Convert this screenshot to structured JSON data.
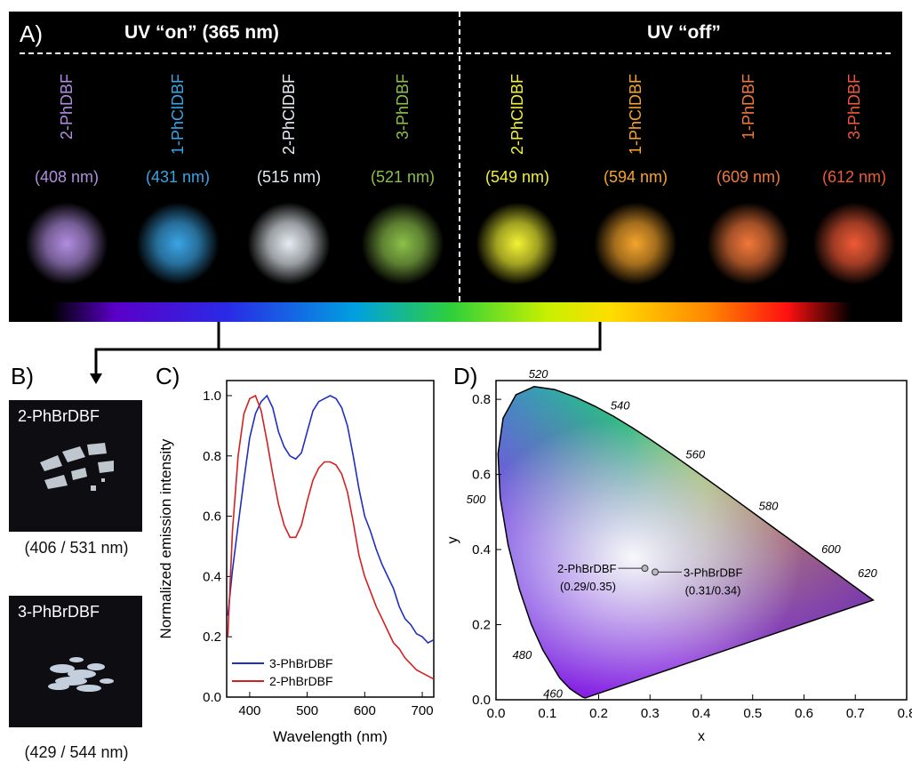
{
  "panel_a": {
    "label": "A)",
    "uv_on": "UV “on” (365 nm)",
    "uv_off": "UV “off”",
    "compounds": [
      {
        "name": "2-PhDBF",
        "wavelength": "(408 nm)",
        "color": "#b18de0"
      },
      {
        "name": "1-PhClDBF",
        "wavelength": "(431 nm)",
        "color": "#3aa5e6"
      },
      {
        "name": "2-PhClDBF",
        "wavelength": "(515 nm)",
        "color": "#e6ecf2"
      },
      {
        "name": "3-PhDBF",
        "wavelength": "(521 nm)",
        "color": "#8cc04a"
      },
      {
        "name": "2-PhClDBF",
        "wavelength": "(549 nm)",
        "color": "#f2f234"
      },
      {
        "name": "1-PhClDBF",
        "wavelength": "(594 nm)",
        "color": "#f5a52c"
      },
      {
        "name": "1-PhDBF",
        "wavelength": "(609 nm)",
        "color": "#f2783a"
      },
      {
        "name": "3-PhDBF",
        "wavelength": "(612 nm)",
        "color": "#ef5a36"
      }
    ]
  },
  "panel_b": {
    "label": "B)",
    "items": [
      {
        "name": "2-PhBrDBF",
        "caption": "(406 / 531 nm)"
      },
      {
        "name": "3-PhBrDBF",
        "caption": "(429 / 544 nm)"
      }
    ]
  },
  "chart_data": [
    {
      "type": "line",
      "panel_label": "C)",
      "xlabel": "Wavelength (nm)",
      "ylabel": "Normalized emission intensity",
      "xlim": [
        360,
        720
      ],
      "ylim": [
        0.0,
        1.05
      ],
      "xticks": [
        400,
        500,
        600,
        700
      ],
      "yticks": [
        "0.0",
        "0.2",
        "0.4",
        "0.6",
        "0.8",
        "1.0"
      ],
      "legend_position": "bottom-left",
      "series": [
        {
          "name": "3-PhBrDBF",
          "color": "#1f2fbf",
          "x": [
            362,
            370,
            380,
            390,
            400,
            410,
            420,
            430,
            440,
            450,
            460,
            470,
            480,
            490,
            500,
            510,
            520,
            530,
            540,
            550,
            560,
            570,
            580,
            590,
            600,
            610,
            620,
            630,
            640,
            650,
            660,
            670,
            680,
            690,
            700,
            710,
            720
          ],
          "y": [
            0.27,
            0.42,
            0.57,
            0.72,
            0.86,
            0.94,
            0.98,
            1.0,
            0.96,
            0.88,
            0.83,
            0.8,
            0.79,
            0.81,
            0.88,
            0.95,
            0.98,
            0.99,
            1.0,
            0.99,
            0.96,
            0.9,
            0.8,
            0.69,
            0.6,
            0.55,
            0.49,
            0.44,
            0.4,
            0.36,
            0.3,
            0.26,
            0.24,
            0.21,
            0.2,
            0.18,
            0.19
          ]
        },
        {
          "name": "2-PhBrDBF",
          "color": "#d32121",
          "x": [
            362,
            370,
            380,
            390,
            400,
            410,
            420,
            430,
            440,
            450,
            460,
            470,
            480,
            490,
            500,
            510,
            520,
            530,
            540,
            550,
            560,
            570,
            580,
            590,
            600,
            610,
            620,
            630,
            640,
            650,
            660,
            670,
            680,
            690,
            700,
            710,
            720
          ],
          "y": [
            0.2,
            0.55,
            0.8,
            0.94,
            0.99,
            1.0,
            0.95,
            0.85,
            0.74,
            0.64,
            0.57,
            0.53,
            0.53,
            0.57,
            0.65,
            0.72,
            0.76,
            0.78,
            0.78,
            0.77,
            0.74,
            0.68,
            0.58,
            0.47,
            0.4,
            0.35,
            0.3,
            0.26,
            0.22,
            0.18,
            0.16,
            0.13,
            0.11,
            0.09,
            0.08,
            0.07,
            0.06
          ]
        }
      ]
    },
    {
      "type": "scatter",
      "panel_label": "D)",
      "xlabel": "x",
      "ylabel": "y",
      "xlim": [
        0.0,
        0.8
      ],
      "ylim": [
        0.0,
        0.85
      ],
      "xticks": [
        "0.0",
        "0.1",
        "0.2",
        "0.3",
        "0.4",
        "0.5",
        "0.6",
        "0.7",
        "0.8"
      ],
      "yticks": [
        "0.0",
        "0.2",
        "0.4",
        "0.6",
        "0.8"
      ],
      "locus_labels": [
        {
          "nm": "460",
          "x": 0.144,
          "y": 0.03
        },
        {
          "nm": "480",
          "x": 0.091,
          "y": 0.133
        },
        {
          "nm": "500",
          "x": 0.008,
          "y": 0.538
        },
        {
          "nm": "520",
          "x": 0.074,
          "y": 0.834
        },
        {
          "nm": "540",
          "x": 0.23,
          "y": 0.754
        },
        {
          "nm": "560",
          "x": 0.373,
          "y": 0.624
        },
        {
          "nm": "580",
          "x": 0.512,
          "y": 0.487
        },
        {
          "nm": "600",
          "x": 0.627,
          "y": 0.372
        },
        {
          "nm": "620",
          "x": 0.691,
          "y": 0.308
        }
      ],
      "points": [
        {
          "name": "2-PhBrDBF",
          "coords": "(0.29/0.35)",
          "x": 0.29,
          "y": 0.35
        },
        {
          "name": "3-PhBrDBF",
          "coords": "(0.31/0.34)",
          "x": 0.31,
          "y": 0.34
        }
      ]
    }
  ]
}
